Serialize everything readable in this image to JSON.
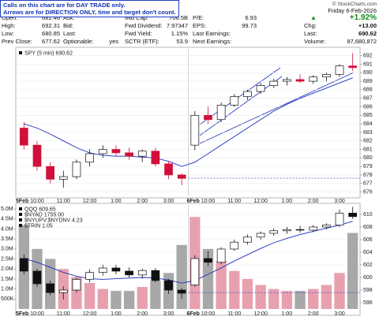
{
  "header": {
    "notice": [
      "Calls on this chart are for DAY TRADE only.",
      "Arrows are for DIRECTION ONLY, time and target don't count."
    ],
    "watermark": "© StockCharts.com",
    "stats": [
      [
        [
          "Open:",
          "681.46"
        ],
        [
          "High:",
          "692.31"
        ],
        [
          "Low:",
          "680.85"
        ],
        [
          "Prev Close:",
          "677.62"
        ]
      ],
      [
        [
          "Ask:",
          ""
        ],
        [
          "Bid:",
          ""
        ],
        [
          "Last:",
          ""
        ],
        [
          "Optionable:",
          "yes"
        ]
      ],
      [
        [
          "Mid Cap:",
          "706.5B"
        ],
        [
          "Fwd Dividend:",
          "7.97347"
        ],
        [
          "Fwd Yield:",
          "1.15%"
        ],
        [
          "SCTR (ETF):",
          "53.9"
        ]
      ],
      [
        [
          "P/E:",
          "6.93"
        ],
        [
          "EPS:",
          "99.73"
        ],
        [
          "Last Earnings:",
          ""
        ],
        [
          "Next Earnings:",
          ""
        ]
      ]
    ],
    "date": "Friday 6-Feb-2026",
    "pct": "+1.92%",
    "quote": [
      [
        "Chg:",
        "+13.00"
      ],
      [
        "Last:",
        "690.62"
      ],
      [
        "Volume:",
        "87,680,872"
      ]
    ]
  },
  "chart_data": [
    {
      "type": "candlestick",
      "title": "SPY (5 min) 690.62",
      "days": [
        "5Feb",
        "6Feb"
      ],
      "categories": [
        null,
        "10:00",
        null,
        "11:00",
        null,
        "12:00",
        null,
        "1:00",
        null,
        "2:00",
        null,
        "3:00",
        null,
        null,
        "10:00",
        null,
        "11:00",
        null,
        "12:00",
        null,
        "1:00",
        null,
        "2:00",
        null,
        "3:00",
        null
      ],
      "open": [
        683.5,
        681.5,
        679.0,
        677.5,
        677.8,
        679.5,
        680.5,
        681.0,
        680.6,
        680.2,
        680.8,
        679.3,
        678.0,
        681.5,
        685.0,
        684.5,
        686.2,
        687.2,
        687.8,
        688.5,
        689.0,
        689.2,
        689.0,
        689.5,
        689.8,
        690.8
      ],
      "high": [
        684.2,
        682.0,
        679.5,
        678.5,
        679.8,
        681.0,
        681.5,
        681.5,
        681.2,
        681.0,
        681.2,
        679.6,
        678.2,
        685.5,
        686.0,
        686.5,
        687.5,
        688.0,
        688.8,
        689.3,
        689.5,
        689.8,
        689.7,
        690.0,
        691.0,
        692.3
      ],
      "low": [
        681.0,
        678.5,
        677.0,
        676.5,
        677.5,
        679.0,
        680.0,
        680.2,
        679.8,
        679.5,
        679.0,
        677.5,
        676.8,
        680.9,
        684.0,
        684.2,
        686.0,
        686.8,
        687.5,
        688.2,
        688.5,
        688.8,
        688.7,
        689.0,
        689.5,
        690.2
      ],
      "close": [
        681.5,
        679.0,
        677.5,
        677.8,
        679.5,
        680.5,
        681.0,
        680.6,
        680.2,
        680.8,
        679.3,
        678.0,
        677.6,
        685.0,
        684.5,
        686.2,
        687.2,
        687.8,
        688.5,
        689.0,
        689.2,
        689.0,
        689.5,
        689.8,
        690.8,
        690.6
      ],
      "ma": [
        684.0,
        683.5,
        682.8,
        682.0,
        681.2,
        680.6,
        680.3,
        680.2,
        680.2,
        680.1,
        680.0,
        679.6,
        679.0,
        679.5,
        680.5,
        681.5,
        682.5,
        683.5,
        684.5,
        685.5,
        686.3,
        687.0,
        687.6,
        688.2,
        688.8,
        689.4
      ],
      "reference_line": 677.62,
      "up_color": "#111111",
      "down_color": "#d0103a",
      "ma_color": "#1a2fbf",
      "ylim": [
        675.5,
        692.8
      ],
      "yticks": [
        676,
        677,
        678,
        679,
        680,
        681,
        682,
        683,
        684,
        685,
        686,
        687,
        688,
        689,
        690,
        691,
        692
      ]
    },
    {
      "type": "candlestick",
      "title": "QQQ 609.65",
      "indicators": [
        "$NYAD 1755.00",
        "$NYUPV:$NYDNV 4.23",
        "$TRIN 1.05"
      ],
      "days": [
        "5Feb",
        "6Feb"
      ],
      "categories": [
        null,
        "10:00",
        null,
        "11:00",
        null,
        "12:00",
        null,
        "1:00",
        null,
        "2:00",
        null,
        "3:00",
        null,
        null,
        "10:00",
        null,
        "11:00",
        null,
        "12:00",
        null,
        "1:00",
        null,
        "2:00",
        null,
        "3:00",
        null
      ],
      "open": [
        603.0,
        601.0,
        599.0,
        597.6,
        598.0,
        599.7,
        600.8,
        601.5,
        601.0,
        600.4,
        601.1,
        599.5,
        598.0,
        598.8,
        603.0,
        602.4,
        604.5,
        605.6,
        606.4,
        607.0,
        607.4,
        607.6,
        607.5,
        608.0,
        608.3,
        610.2
      ],
      "high": [
        603.6,
        601.4,
        599.5,
        598.6,
        600.0,
        601.3,
        602.0,
        602.0,
        601.6,
        601.4,
        601.5,
        599.8,
        598.3,
        603.5,
        604.2,
        604.8,
        606.0,
        606.8,
        607.3,
        607.8,
        608.0,
        608.2,
        608.3,
        608.6,
        610.8,
        611.2
      ],
      "low": [
        600.5,
        598.5,
        597.2,
        596.5,
        597.6,
        599.2,
        600.3,
        600.5,
        600.0,
        599.8,
        599.2,
        597.4,
        596.6,
        598.5,
        601.8,
        602.1,
        604.2,
        605.2,
        606.0,
        606.6,
        606.9,
        607.1,
        607.2,
        607.6,
        608.0,
        609.3
      ],
      "close": [
        601.0,
        599.0,
        597.6,
        598.0,
        599.7,
        600.8,
        601.5,
        601.0,
        600.4,
        601.1,
        599.5,
        598.0,
        597.5,
        603.0,
        602.4,
        604.5,
        605.6,
        606.4,
        607.0,
        607.4,
        607.6,
        607.5,
        608.0,
        608.3,
        610.2,
        609.65
      ],
      "ma": [
        603.0,
        602.4,
        601.6,
        600.8,
        600.2,
        599.8,
        599.7,
        599.8,
        599.9,
        600.0,
        599.9,
        599.6,
        599.1,
        599.5,
        600.5,
        601.5,
        602.6,
        603.6,
        604.6,
        605.5,
        606.2,
        606.8,
        607.3,
        607.8,
        608.3,
        608.9
      ],
      "volume": [
        4200000,
        3000000,
        2500000,
        2000000,
        1600000,
        1300000,
        1000000,
        900000,
        900000,
        1100000,
        1400000,
        1800000,
        3200000,
        4600000,
        3000000,
        2400000,
        1900000,
        1500000,
        1200000,
        1000000,
        900000,
        900000,
        1000000,
        1200000,
        1800000,
        3800000
      ],
      "reference_line": 597.6,
      "up_color": "#111111",
      "down_color": "#111111",
      "ma_color": "#1a2fbf",
      "volume_up_color": "#e8a0ae",
      "volume_down_color": "#a8a8a8",
      "ylim": [
        595,
        611.5
      ],
      "yticks": [
        596,
        598,
        600,
        602,
        604,
        606,
        608,
        610
      ],
      "y2lim": [
        0,
        5200000
      ],
      "y2ticks": [
        {
          "value": 500000,
          "label": "500K"
        },
        {
          "value": 1000000,
          "label": "1.0M"
        },
        {
          "value": 1500000,
          "label": "1.5M"
        },
        {
          "value": 2000000,
          "label": "2.0M"
        },
        {
          "value": 2500000,
          "label": "2.5M"
        },
        {
          "value": 3000000,
          "label": "3.0M"
        },
        {
          "value": 3500000,
          "label": "3.5M"
        },
        {
          "value": 4000000,
          "label": "4.0M"
        },
        {
          "value": 4500000,
          "label": "4.5M"
        },
        {
          "value": 5000000,
          "label": "5.0M"
        }
      ]
    }
  ]
}
